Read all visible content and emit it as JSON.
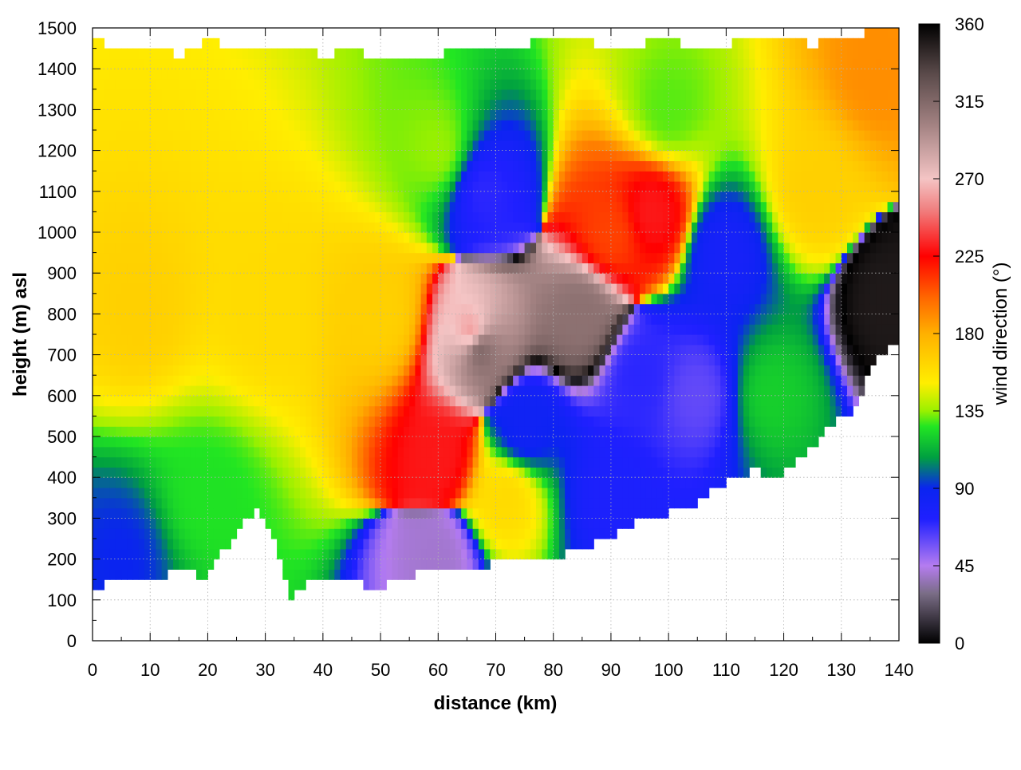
{
  "chart_data": {
    "type": "heatmap",
    "xlabel": "distance (km)",
    "ylabel": "height (m) asl",
    "colorbar_label": "wind direction (°)",
    "xlim": [
      0,
      140
    ],
    "ylim": [
      0,
      1500
    ],
    "clim": [
      0,
      360
    ],
    "x_ticks": [
      "0",
      "10",
      "20",
      "30",
      "40",
      "50",
      "60",
      "70",
      "80",
      "90",
      "100",
      "110",
      "120",
      "130",
      "140"
    ],
    "y_ticks": [
      "0",
      "100",
      "200",
      "300",
      "400",
      "500",
      "600",
      "700",
      "800",
      "900",
      "1000",
      "1100",
      "1200",
      "1300",
      "1400",
      "1500"
    ],
    "colorbar_ticks": [
      "0",
      "45",
      "90",
      "135",
      "180",
      "225",
      "270",
      "315",
      "360"
    ],
    "grid": true,
    "terrain_height": [
      [
        0,
        140
      ],
      [
        1,
        130
      ],
      [
        3,
        155
      ],
      [
        6,
        150
      ],
      [
        8,
        145
      ],
      [
        10,
        140
      ],
      [
        12,
        140
      ],
      [
        14,
        175
      ],
      [
        16,
        185
      ],
      [
        18,
        160
      ],
      [
        20,
        150
      ],
      [
        22,
        210
      ],
      [
        25,
        260
      ],
      [
        28,
        320
      ],
      [
        30,
        300
      ],
      [
        32,
        240
      ],
      [
        34,
        105
      ],
      [
        35,
        100
      ],
      [
        36,
        130
      ],
      [
        38,
        150
      ],
      [
        40,
        155
      ],
      [
        42,
        145
      ],
      [
        44,
        150
      ],
      [
        46,
        140
      ],
      [
        48,
        135
      ],
      [
        50,
        135
      ],
      [
        52,
        140
      ],
      [
        55,
        155
      ],
      [
        58,
        175
      ],
      [
        60,
        180
      ],
      [
        65,
        175
      ],
      [
        70,
        190
      ],
      [
        75,
        190
      ],
      [
        80,
        200
      ],
      [
        85,
        230
      ],
      [
        90,
        250
      ],
      [
        95,
        300
      ],
      [
        100,
        310
      ],
      [
        105,
        340
      ],
      [
        110,
        390
      ],
      [
        115,
        420
      ],
      [
        118,
        400
      ],
      [
        120,
        410
      ],
      [
        125,
        480
      ],
      [
        128,
        520
      ],
      [
        130,
        560
      ],
      [
        132,
        550
      ],
      [
        134,
        620
      ],
      [
        136,
        700
      ],
      [
        140,
        730
      ]
    ],
    "top_height": [
      [
        0,
        1480
      ],
      [
        5,
        1440
      ],
      [
        10,
        1460
      ],
      [
        15,
        1430
      ],
      [
        20,
        1470
      ],
      [
        25,
        1450
      ],
      [
        30,
        1440
      ],
      [
        35,
        1460
      ],
      [
        40,
        1430
      ],
      [
        45,
        1450
      ],
      [
        50,
        1420
      ],
      [
        55,
        1420
      ],
      [
        60,
        1430
      ],
      [
        65,
        1460
      ],
      [
        70,
        1440
      ],
      [
        75,
        1460
      ],
      [
        80,
        1480
      ],
      [
        85,
        1470
      ],
      [
        90,
        1450
      ],
      [
        95,
        1460
      ],
      [
        100,
        1470
      ],
      [
        105,
        1450
      ],
      [
        110,
        1460
      ],
      [
        115,
        1480
      ],
      [
        120,
        1470
      ],
      [
        125,
        1460
      ],
      [
        130,
        1480
      ],
      [
        135,
        1490
      ],
      [
        140,
        1500
      ]
    ],
    "wind_direction_features": [
      {
        "x": 8,
        "y": 800,
        "value": 165
      },
      {
        "x": 30,
        "y": 800,
        "value": 160
      },
      {
        "x": 50,
        "y": 800,
        "value": 165
      },
      {
        "x": 20,
        "y": 350,
        "value": 125
      },
      {
        "x": 5,
        "y": 200,
        "value": 90
      },
      {
        "x": 60,
        "y": 1200,
        "value": 135
      },
      {
        "x": 66,
        "y": 750,
        "value": 255
      },
      {
        "x": 67,
        "y": 720,
        "value": 320
      },
      {
        "x": 68,
        "y": 1100,
        "value": 70
      },
      {
        "x": 60,
        "y": 450,
        "value": 230
      },
      {
        "x": 72,
        "y": 350,
        "value": 160
      },
      {
        "x": 75,
        "y": 520,
        "value": 85
      },
      {
        "x": 85,
        "y": 800,
        "value": 310
      },
      {
        "x": 90,
        "y": 1000,
        "value": 210
      },
      {
        "x": 97,
        "y": 1050,
        "value": 230
      },
      {
        "x": 95,
        "y": 650,
        "value": 70
      },
      {
        "x": 105,
        "y": 600,
        "value": 60
      },
      {
        "x": 90,
        "y": 350,
        "value": 75
      },
      {
        "x": 110,
        "y": 950,
        "value": 80
      },
      {
        "x": 118,
        "y": 600,
        "value": 120
      },
      {
        "x": 125,
        "y": 1100,
        "value": 165
      },
      {
        "x": 136,
        "y": 1400,
        "value": 190
      },
      {
        "x": 138,
        "y": 820,
        "value": 350
      },
      {
        "x": 100,
        "y": 1300,
        "value": 130
      },
      {
        "x": 60,
        "y": 200,
        "value": 40
      }
    ]
  }
}
